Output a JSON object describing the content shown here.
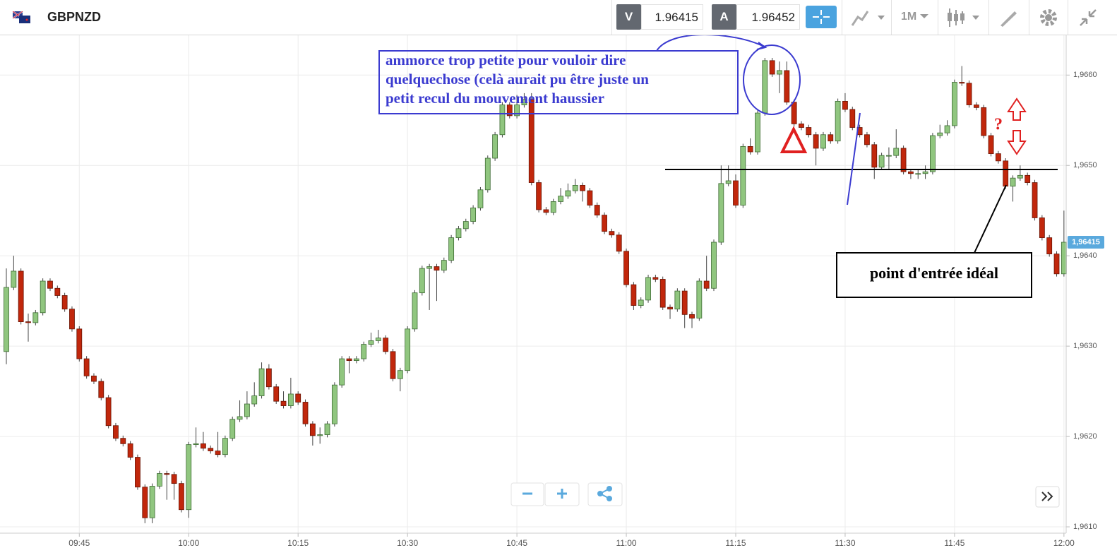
{
  "header": {
    "symbol": "GBPNZD",
    "bid_label": "V",
    "bid": "1.96415",
    "ask_label": "A",
    "ask": "1.96452",
    "timeframe": "1M"
  },
  "chart_data": {
    "type": "candlestick",
    "categories": [
      "09:35",
      "09:36",
      "09:37",
      "09:38",
      "09:39",
      "09:40",
      "09:41",
      "09:42",
      "09:43",
      "09:44",
      "09:45",
      "09:46",
      "09:47",
      "09:48",
      "09:49",
      "09:50",
      "09:51",
      "09:52",
      "09:53",
      "09:54",
      "09:55",
      "09:56",
      "09:57",
      "09:58",
      "09:59",
      "10:00",
      "10:01",
      "10:02",
      "10:03",
      "10:04",
      "10:05",
      "10:06",
      "10:07",
      "10:08",
      "10:09",
      "10:10",
      "10:11",
      "10:12",
      "10:13",
      "10:14",
      "10:15",
      "10:16",
      "10:17",
      "10:18",
      "10:19",
      "10:20",
      "10:21",
      "10:22",
      "10:23",
      "10:24",
      "10:25",
      "10:26",
      "10:27",
      "10:28",
      "10:29",
      "10:30",
      "10:31",
      "10:32",
      "10:33",
      "10:34",
      "10:35",
      "10:36",
      "10:37",
      "10:38",
      "10:39",
      "10:40",
      "10:41",
      "10:42",
      "10:43",
      "10:44",
      "10:45",
      "10:46",
      "10:47",
      "10:48",
      "10:49",
      "10:50",
      "10:51",
      "10:52",
      "10:53",
      "10:54",
      "10:55",
      "10:56",
      "10:57",
      "10:58",
      "10:59",
      "11:00",
      "11:01",
      "11:02",
      "11:03",
      "11:04",
      "11:05",
      "11:06",
      "11:07",
      "11:08",
      "11:09",
      "11:10",
      "11:11",
      "11:12",
      "11:13",
      "11:14",
      "11:15",
      "11:16",
      "11:17",
      "11:18",
      "11:19",
      "11:20",
      "11:21",
      "11:22",
      "11:23",
      "11:24",
      "11:25",
      "11:26",
      "11:27",
      "11:28",
      "11:29",
      "11:30",
      "11:31",
      "11:32",
      "11:33",
      "11:34",
      "11:35",
      "11:36",
      "11:37",
      "11:38",
      "11:39",
      "11:40",
      "11:41",
      "11:42",
      "11:43",
      "11:44",
      "11:45",
      "11:46",
      "11:47",
      "11:48",
      "11:49",
      "11:50",
      "11:51",
      "11:52",
      "11:53",
      "11:54",
      "11:55",
      "11:56",
      "11:57",
      "11:58",
      "11:59",
      "12:00"
    ],
    "series": [
      {
        "up_color": "#90c67f",
        "down_color": "#c1270c",
        "open": [
          1.96294,
          1.96365,
          1.96383,
          1.96327,
          1.96326,
          1.96337,
          1.96372,
          1.96364,
          1.96356,
          1.96341,
          1.96319,
          1.96286,
          1.96267,
          1.96261,
          1.96243,
          1.96212,
          1.96198,
          1.96192,
          1.96177,
          1.96144,
          1.9611,
          1.96145,
          1.96159,
          1.96158,
          1.96148,
          1.96119,
          1.96191,
          1.96192,
          1.96187,
          1.96184,
          1.9618,
          1.96198,
          1.96219,
          1.96222,
          1.96236,
          1.96245,
          1.96275,
          1.96255,
          1.96239,
          1.96234,
          1.96247,
          1.96238,
          1.96214,
          1.96201,
          1.96202,
          1.96214,
          1.96257,
          1.96286,
          1.96284,
          1.96286,
          1.96302,
          1.96306,
          1.96309,
          1.96294,
          1.96264,
          1.96273,
          1.96319,
          1.96359,
          1.96386,
          1.96388,
          1.96384,
          1.96395,
          1.9642,
          1.9643,
          1.96438,
          1.96453,
          1.96473,
          1.96508,
          1.96534,
          1.96567,
          1.96555,
          1.96567,
          1.96573,
          1.96481,
          1.96451,
          1.96448,
          1.9646,
          1.96466,
          1.96472,
          1.96478,
          1.96472,
          1.96456,
          1.96445,
          1.96427,
          1.96423,
          1.96405,
          1.96368,
          1.96345,
          1.96351,
          1.96376,
          1.96374,
          1.96343,
          1.96341,
          1.96361,
          1.96335,
          1.96331,
          1.96372,
          1.96364,
          1.96415,
          1.9648,
          1.96483,
          1.96456,
          1.96521,
          1.96515,
          1.96558,
          1.96616,
          1.96601,
          1.96605,
          1.9657,
          1.96546,
          1.96542,
          1.96534,
          1.96519,
          1.96534,
          1.96527,
          1.96571,
          1.96562,
          1.96542,
          1.96534,
          1.96523,
          1.96498,
          1.96511,
          1.96511,
          1.96519,
          1.96493,
          1.96491,
          1.96491,
          1.96493,
          1.96533,
          1.96536,
          1.96544,
          1.96592,
          1.96591,
          1.96567,
          1.96564,
          1.96533,
          1.96513,
          1.96505,
          1.96477,
          1.96486,
          1.96489,
          1.96481,
          1.96442,
          1.9642,
          1.96402,
          1.9638
        ],
        "high": [
          1.96386,
          1.964,
          1.96386,
          1.96336,
          1.9634,
          1.96375,
          1.96375,
          1.96367,
          1.96359,
          1.96344,
          1.96322,
          1.96289,
          1.9627,
          1.96264,
          1.96246,
          1.96215,
          1.96201,
          1.96195,
          1.9618,
          1.96147,
          1.96148,
          1.96162,
          1.96162,
          1.96161,
          1.96151,
          1.96194,
          1.9621,
          1.96205,
          1.9619,
          1.96205,
          1.96201,
          1.96222,
          1.9624,
          1.9625,
          1.9626,
          1.96282,
          1.9628,
          1.96258,
          1.9625,
          1.96265,
          1.9625,
          1.96241,
          1.96217,
          1.9621,
          1.96217,
          1.9626,
          1.96289,
          1.96289,
          1.96289,
          1.96305,
          1.96315,
          1.96318,
          1.96312,
          1.96297,
          1.96276,
          1.96322,
          1.96362,
          1.96389,
          1.96391,
          1.96391,
          1.96398,
          1.96423,
          1.96433,
          1.96441,
          1.96456,
          1.96476,
          1.96511,
          1.96537,
          1.9657,
          1.9657,
          1.96578,
          1.9658,
          1.9658,
          1.96484,
          1.96454,
          1.96463,
          1.96475,
          1.9648,
          1.96485,
          1.96481,
          1.96475,
          1.96459,
          1.96448,
          1.9643,
          1.96426,
          1.96408,
          1.96371,
          1.96354,
          1.96379,
          1.96379,
          1.96377,
          1.96346,
          1.96364,
          1.96364,
          1.96338,
          1.96375,
          1.964,
          1.96418,
          1.965,
          1.965,
          1.9649,
          1.96524,
          1.9653,
          1.96561,
          1.96619,
          1.96619,
          1.96615,
          1.96615,
          1.96573,
          1.96549,
          1.96545,
          1.96537,
          1.96537,
          1.96537,
          1.96574,
          1.9658,
          1.96565,
          1.96545,
          1.96537,
          1.96526,
          1.96514,
          1.9652,
          1.9654,
          1.96522,
          1.96496,
          1.96496,
          1.965,
          1.96536,
          1.96545,
          1.9655,
          1.96595,
          1.9661,
          1.96594,
          1.9657,
          1.96567,
          1.96536,
          1.96516,
          1.96508,
          1.96489,
          1.965,
          1.96492,
          1.96484,
          1.96445,
          1.96423,
          1.96405,
          1.9645
        ],
        "low": [
          1.9628,
          1.96362,
          1.96324,
          1.96305,
          1.96323,
          1.96334,
          1.96361,
          1.96353,
          1.96338,
          1.96316,
          1.96283,
          1.96264,
          1.96258,
          1.9624,
          1.96209,
          1.96195,
          1.96189,
          1.96174,
          1.96141,
          1.96104,
          1.96104,
          1.96142,
          1.9613,
          1.9613,
          1.96116,
          1.9611,
          1.96188,
          1.96184,
          1.96181,
          1.96177,
          1.96177,
          1.96195,
          1.96216,
          1.96219,
          1.96233,
          1.96242,
          1.96252,
          1.96236,
          1.96231,
          1.96231,
          1.96235,
          1.96211,
          1.9619,
          1.96192,
          1.96199,
          1.96211,
          1.96254,
          1.9627,
          1.96281,
          1.96283,
          1.96299,
          1.96303,
          1.96291,
          1.96261,
          1.9625,
          1.9627,
          1.96316,
          1.96356,
          1.9634,
          1.9635,
          1.96381,
          1.96392,
          1.96417,
          1.96427,
          1.96435,
          1.9645,
          1.9647,
          1.96505,
          1.96531,
          1.96552,
          1.96552,
          1.96564,
          1.96478,
          1.96448,
          1.96445,
          1.96445,
          1.96457,
          1.96463,
          1.96469,
          1.9646,
          1.96453,
          1.96442,
          1.96424,
          1.9642,
          1.96402,
          1.96365,
          1.9634,
          1.96342,
          1.96348,
          1.96371,
          1.9634,
          1.9633,
          1.96338,
          1.9632,
          1.9632,
          1.96328,
          1.96361,
          1.96361,
          1.96412,
          1.96477,
          1.96453,
          1.96453,
          1.96512,
          1.96512,
          1.96555,
          1.96598,
          1.9658,
          1.96567,
          1.96543,
          1.96539,
          1.96531,
          1.965,
          1.96516,
          1.96524,
          1.96524,
          1.96559,
          1.96539,
          1.96531,
          1.9652,
          1.96485,
          1.96495,
          1.96495,
          1.96508,
          1.9649,
          1.96485,
          1.96485,
          1.96485,
          1.9649,
          1.9653,
          1.96533,
          1.96541,
          1.96588,
          1.96564,
          1.96561,
          1.9653,
          1.9651,
          1.96502,
          1.96474,
          1.9646,
          1.96483,
          1.96478,
          1.96439,
          1.96417,
          1.96399,
          1.96377,
          1.96377
        ],
        "close": [
          1.96365,
          1.96383,
          1.96327,
          1.96326,
          1.96337,
          1.96372,
          1.96364,
          1.96356,
          1.96341,
          1.96319,
          1.96286,
          1.96267,
          1.96261,
          1.96243,
          1.96212,
          1.96198,
          1.96192,
          1.96177,
          1.96144,
          1.9611,
          1.96145,
          1.96159,
          1.96158,
          1.96148,
          1.96119,
          1.96191,
          1.96192,
          1.96187,
          1.96184,
          1.9618,
          1.96198,
          1.96219,
          1.96222,
          1.96236,
          1.96245,
          1.96275,
          1.96255,
          1.96239,
          1.96234,
          1.96247,
          1.96238,
          1.96214,
          1.96201,
          1.96202,
          1.96214,
          1.96257,
          1.96286,
          1.96284,
          1.96286,
          1.96302,
          1.96306,
          1.96309,
          1.96294,
          1.96264,
          1.96273,
          1.96319,
          1.96359,
          1.96386,
          1.96388,
          1.96384,
          1.96395,
          1.9642,
          1.9643,
          1.96438,
          1.96453,
          1.96473,
          1.96508,
          1.96534,
          1.96567,
          1.96555,
          1.96567,
          1.96573,
          1.96481,
          1.96451,
          1.96448,
          1.9646,
          1.96466,
          1.96472,
          1.96478,
          1.96472,
          1.96456,
          1.96445,
          1.96427,
          1.96423,
          1.96405,
          1.96368,
          1.96345,
          1.96351,
          1.96376,
          1.96374,
          1.96343,
          1.96341,
          1.96361,
          1.96335,
          1.96331,
          1.96372,
          1.96364,
          1.96415,
          1.9648,
          1.96483,
          1.96456,
          1.96521,
          1.96515,
          1.96558,
          1.96616,
          1.96601,
          1.96605,
          1.9657,
          1.96546,
          1.96542,
          1.96534,
          1.96519,
          1.96534,
          1.96527,
          1.96571,
          1.96562,
          1.96542,
          1.96534,
          1.96523,
          1.96498,
          1.96511,
          1.96511,
          1.96519,
          1.96493,
          1.96491,
          1.96491,
          1.96493,
          1.96533,
          1.96536,
          1.96544,
          1.96592,
          1.96591,
          1.96567,
          1.96564,
          1.96533,
          1.96513,
          1.96505,
          1.96477,
          1.96486,
          1.96489,
          1.96481,
          1.96442,
          1.9642,
          1.96402,
          1.9638,
          1.96415
        ]
      }
    ],
    "xticks": [
      "09:45",
      "10:00",
      "10:15",
      "10:30",
      "10:45",
      "11:00",
      "11:15",
      "11:30",
      "11:45",
      "12:00"
    ],
    "ylim": [
      1.96093,
      1.96644
    ],
    "yticks": [
      {
        "value": 1.961,
        "label": "1,9610"
      },
      {
        "value": 1.962,
        "label": "1,9620"
      },
      {
        "value": 1.963,
        "label": "1,9630"
      },
      {
        "value": 1.964,
        "label": "1,9640"
      },
      {
        "value": 1.965,
        "label": "1,9650"
      },
      {
        "value": 1.966,
        "label": "1,9660"
      }
    ],
    "last_price": {
      "value": 1.96415,
      "label": "1,96415"
    },
    "grid": true
  },
  "annotations": {
    "note_lines": [
      "ammorce trop petite pour vouloir dire",
      "quelquechose (celà aurait pu être juste un",
      "petit recul du mouvement haussier"
    ],
    "entry": "point d'entrée idéal",
    "question": "?"
  }
}
